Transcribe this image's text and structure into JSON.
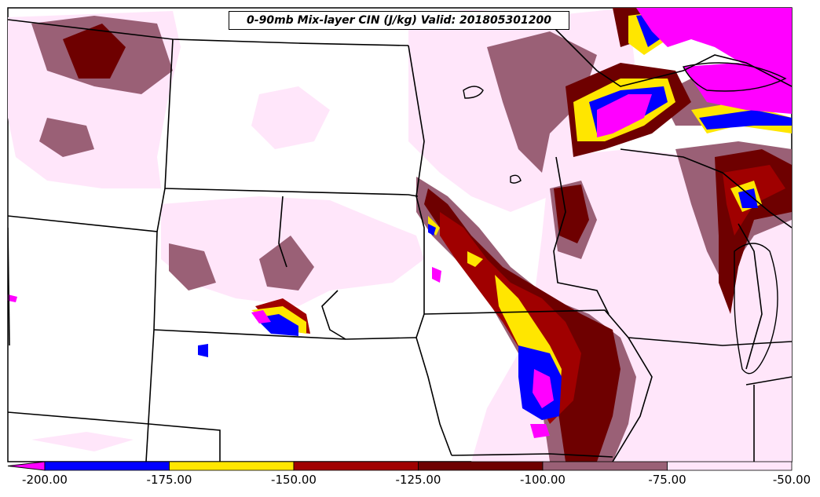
{
  "title": "0-90mb Mix-layer CIN (J/kg) Valid: 201805301200",
  "colors": {
    "pink_light": "#ffe6fa",
    "mauve": "#9a6076",
    "dark_red": "#6e0000",
    "red": "#a00000",
    "yellow": "#ffe600",
    "blue": "#0000ff",
    "magenta": "#ff00ff",
    "land": "#ffffff",
    "border": "#000000"
  },
  "legend": {
    "ticks": [
      "-200.00",
      "-175.00",
      "-150.00",
      "-125.00",
      "-100.00",
      "-75.00",
      "-50.00"
    ],
    "bins": [
      {
        "from": -200,
        "to": -175,
        "color": "#0000ff"
      },
      {
        "from": -175,
        "to": -150,
        "color": "#ffe600"
      },
      {
        "from": -150,
        "to": -125,
        "color": "#a00000"
      },
      {
        "from": -125,
        "to": -100,
        "color": "#6e0000"
      },
      {
        "from": -100,
        "to": -75,
        "color": "#9a6076"
      },
      {
        "from": -75,
        "to": -50,
        "color": "#ffe6fa"
      }
    ],
    "below_min_color": "#ff00ff"
  }
}
